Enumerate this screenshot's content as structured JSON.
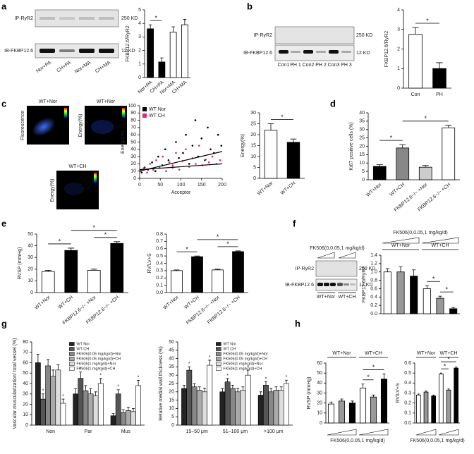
{
  "panels": {
    "letters": [
      "a",
      "b",
      "c",
      "d",
      "e",
      "f",
      "g",
      "h"
    ]
  },
  "blot_a": {
    "top": "IP-RyR2",
    "top_size": "250 KD",
    "bottom": "IB-FKBP12.6",
    "bottom_size": "12 KD",
    "lanes": [
      "Nor+PA",
      "CH+PA",
      "Nor+MA",
      "CH+MA"
    ]
  },
  "blot_b": {
    "top": "IP-RyR2",
    "top_size": "250 KD",
    "bottom": "IB-FKBP12.6",
    "bottom_size": "12 KD",
    "lanes": [
      "Con1",
      "PH 1",
      "Con2",
      "PH 2",
      "Con3",
      "PH 3"
    ]
  },
  "images_c": {
    "titles": [
      "WT+Nor",
      "WT+Nor",
      "WT+CH"
    ],
    "side_labels": [
      "Fluorescence",
      "Energy(%)",
      "Energy(%)"
    ]
  },
  "blot_f": {
    "header": "FK506(0,0.05,1 mg/kg/d)",
    "top": "IP-RyR2",
    "top_size": "250 KD",
    "bottom": "IB-FKBP12.6",
    "bottom_size": "12 KD",
    "groups": [
      "WT+Nor",
      "WT+CH"
    ]
  },
  "chart_data": [
    {
      "type": "bar",
      "ylabel": "FKBP12.6/RyR2",
      "categories": [
        "Nor+PA",
        "CH+PA",
        "Nor+MA",
        "CH+MA"
      ],
      "values": [
        3.6,
        1.15,
        3.35,
        3.9
      ],
      "errors": [
        0.3,
        0.3,
        0.4,
        0.4
      ],
      "colors": [
        "#000000",
        "#000000",
        "#ffffff",
        "#ffffff"
      ],
      "ylim": [
        0,
        5
      ],
      "yticks": [
        0,
        1,
        2,
        3,
        4,
        5
      ],
      "rotate_labels": true,
      "significance": [
        {
          "from": 0,
          "to": 1,
          "label": "*"
        }
      ]
    },
    {
      "type": "bar",
      "ylabel": "FKBP12.6/RyR2",
      "categories": [
        "Con",
        "PH"
      ],
      "values": [
        2.75,
        1.0
      ],
      "errors": [
        0.35,
        0.3
      ],
      "colors": [
        "#ffffff",
        "#000000"
      ],
      "ylim": [
        0,
        4
      ],
      "yticks": [
        0,
        1,
        2,
        3,
        4
      ],
      "rotate_labels": false,
      "significance": [
        {
          "from": 0,
          "to": 1,
          "label": "*"
        }
      ]
    },
    {
      "type": "scatter",
      "xlabel": "Acceptor",
      "ylabel": "Energy(%)",
      "xlim": [
        0,
        200
      ],
      "ylim": [
        0,
        100
      ],
      "xticks": [
        0,
        50,
        100,
        150,
        200
      ],
      "yticks": [
        0,
        10,
        20,
        30,
        40,
        50,
        60,
        70,
        80,
        90,
        100
      ],
      "trend_x": [
        0,
        200
      ],
      "series": [
        {
          "name": "WT Nor",
          "color": "#000000",
          "x": [
            5,
            12,
            20,
            30,
            38,
            45,
            55,
            62,
            70,
            80,
            88,
            95,
            105,
            112,
            120,
            128,
            135,
            142,
            150,
            158,
            165,
            172,
            180,
            190,
            198
          ],
          "y": [
            8,
            15,
            12,
            22,
            10,
            30,
            18,
            40,
            25,
            15,
            50,
            28,
            35,
            60,
            20,
            45,
            80,
            30,
            55,
            25,
            70,
            40,
            35,
            60,
            45
          ],
          "trend_y": [
            10,
            37
          ]
        },
        {
          "name": "WT CH",
          "color": "#e0218a",
          "x": [
            3,
            10,
            18,
            25,
            33,
            40,
            48,
            56,
            64,
            72,
            80,
            88,
            96,
            104,
            112,
            120,
            128,
            136,
            144,
            152,
            160,
            168,
            176,
            186,
            195
          ],
          "y": [
            10,
            14,
            8,
            20,
            12,
            25,
            15,
            30,
            10,
            22,
            18,
            35,
            12,
            24,
            40,
            16,
            28,
            20,
            45,
            18,
            26,
            22,
            30,
            20,
            25
          ],
          "trend_y": [
            12,
            20
          ]
        }
      ]
    },
    {
      "type": "bar",
      "ylabel": "Energy(%)",
      "categories": [
        "WT+Nor",
        "WT+CH"
      ],
      "values": [
        22,
        16.5
      ],
      "errors": [
        3,
        1.5
      ],
      "colors": [
        "#ffffff",
        "#000000"
      ],
      "ylim": [
        0,
        30
      ],
      "yticks": [
        0,
        5,
        10,
        15,
        20,
        25,
        30
      ],
      "rotate_labels": true,
      "significance": [
        {
          "from": 0,
          "to": 1,
          "label": "*"
        }
      ]
    },
    {
      "type": "bar",
      "ylabel": "Ki67 positive cells (%)",
      "categories": [
        "WT+Nor",
        "WT+CH",
        "FKBP12.6−/− +Nor",
        "FKBP12.6−/− +CH"
      ],
      "values": [
        8,
        19,
        7.5,
        31
      ],
      "errors": [
        1,
        2,
        1,
        1.5
      ],
      "colors": [
        "#000000",
        "#888888",
        "#cccccc",
        "#ffffff"
      ],
      "ylim": [
        0,
        40
      ],
      "yticks": [
        0,
        5,
        10,
        15,
        20,
        25,
        30,
        35,
        40
      ],
      "rotate_labels": true,
      "significance": [
        {
          "from": 0,
          "to": 1,
          "label": "*"
        },
        {
          "from": 1,
          "to": 3,
          "label": "*"
        }
      ]
    },
    {
      "type": "bar",
      "ylabel": "RVSP (mmHg)",
      "categories": [
        "WT+Nor",
        "WT+CH",
        "FKBP12.6−/− +Nor",
        "FKBP12.6−/− +CH"
      ],
      "values": [
        18,
        36,
        19,
        42
      ],
      "errors": [
        1,
        2,
        1,
        1.5
      ],
      "colors": [
        "#ffffff",
        "#000000",
        "#ffffff",
        "#000000"
      ],
      "ylim": [
        0,
        50
      ],
      "yticks": [
        0,
        10,
        20,
        30,
        40,
        50
      ],
      "rotate_labels": true,
      "significance": [
        {
          "from": 0,
          "to": 1,
          "label": "*"
        },
        {
          "from": 2,
          "to": 3,
          "label": "*"
        },
        {
          "from": 1,
          "to": 3,
          "label": "*"
        }
      ]
    },
    {
      "type": "bar",
      "ylabel": "RV/LV+S",
      "categories": [
        "WT+Nor",
        "WT+CH",
        "FKBP12.6−/− +Nor",
        "FKBP12.6−/− +CH"
      ],
      "values": [
        0.3,
        0.49,
        0.31,
        0.56
      ],
      "errors": [
        0.01,
        0.01,
        0.01,
        0.01
      ],
      "colors": [
        "#ffffff",
        "#000000",
        "#ffffff",
        "#000000"
      ],
      "ylim": [
        0,
        0.8
      ],
      "yticks": [
        {
          "value": 0,
          "label": "0.0"
        },
        0.1,
        0.2,
        0.3,
        0.4,
        0.5,
        0.6,
        0.7,
        0.8
      ],
      "rotate_labels": true,
      "significance": [
        {
          "from": 0,
          "to": 1,
          "label": "*"
        },
        {
          "from": 2,
          "to": 3,
          "label": "*"
        },
        {
          "from": 1,
          "to": 3,
          "label": "*"
        }
      ]
    },
    {
      "type": "bar",
      "ylabel": "FKBP12.6/RyR2",
      "values": [
        1.0,
        1.0,
        0.9,
        0.6,
        0.37,
        0.12
      ],
      "errors": [
        0.08,
        0.12,
        0.15,
        0.07,
        0.05,
        0.03
      ],
      "colors": [
        "#ffffff",
        "#999999",
        "#000000",
        "#ffffff",
        "#999999",
        "#000000"
      ],
      "ylim": [
        0,
        1.4
      ],
      "yticks": [
        {
          "value": 0,
          "label": "0.0"
        },
        0.2,
        0.4,
        0.6,
        0.8,
        {
          "value": 1,
          "label": "1.0"
        },
        1.2,
        1.4
      ],
      "significance": [
        {
          "from": 3,
          "to": 4,
          "label": "*"
        },
        {
          "from": 4,
          "to": 5,
          "label": "*"
        }
      ],
      "groups": [
        {
          "label": "WT+Nor",
          "bars": [
            0,
            2
          ]
        },
        {
          "label": "WT+CH",
          "bars": [
            3,
            5
          ]
        }
      ],
      "header": "FK506(0,0.05,1 mg/kg/d)",
      "header_position": "top"
    },
    {
      "type": "grouped_bar",
      "ylabel": "Vascular muscularization/ total vessel (%)",
      "categories": [
        "Non",
        "Par",
        "Mus"
      ],
      "ylim": [
        0,
        80
      ],
      "yticks": [
        0,
        10,
        20,
        30,
        40,
        50,
        60,
        70,
        80
      ],
      "series": [
        {
          "name": "WT Nor",
          "color": "#222222",
          "values": [
            60,
            30,
            9
          ],
          "errors": [
            8,
            5,
            2
          ]
        },
        {
          "name": "WT CH",
          "color": "#555555",
          "values": [
            25,
            45,
            30
          ],
          "errors": [
            5,
            6,
            4
          ]
        },
        {
          "name": "FK506(0.05 mg/kg/d)+Nor",
          "color": "#888888",
          "values": [
            57,
            33,
            12
          ],
          "errors": [
            6,
            5,
            3
          ]
        },
        {
          "name": "FK506(0.05 mg/kg/d)+CH",
          "color": "#aaaaaa",
          "values": [
            47,
            30,
            14
          ],
          "errors": [
            6,
            5,
            3
          ]
        },
        {
          "name": "FK506(1 mg/kg/d)+Nor",
          "color": "#dddddd",
          "values": [
            53,
            28,
            13
          ],
          "errors": [
            5,
            4,
            3
          ]
        },
        {
          "name": "FK506(1 mg/kg/d)+CH",
          "color": "#ffffff",
          "values": [
            21,
            40,
            38
          ],
          "errors": [
            4,
            5,
            5
          ]
        }
      ],
      "annotations": [
        {
          "label": "*",
          "category": 0,
          "series": 1
        },
        {
          "label": "*",
          "category": 0,
          "series": 5
        },
        {
          "label": "*",
          "category": 1,
          "series": 1
        },
        {
          "label": "*",
          "category": 1,
          "series": 5
        },
        {
          "label": "*",
          "category": 2,
          "series": 1
        },
        {
          "label": "*",
          "category": 2,
          "series": 5
        }
      ]
    },
    {
      "type": "grouped_bar",
      "ylabel": "Relative medial wall thickness (%)",
      "categories": [
        "15–50 μm",
        "51–100 μm",
        ">100 μm"
      ],
      "ylim": [
        0,
        50
      ],
      "yticks": [
        0,
        5,
        10,
        15,
        20,
        25,
        30,
        35,
        40,
        45,
        50
      ],
      "series": [
        {
          "name": "WT Nor",
          "color": "#222222",
          "values": [
            22,
            20,
            18
          ],
          "errors": [
            2,
            2,
            2
          ]
        },
        {
          "name": "WT CH",
          "color": "#555555",
          "values": [
            33,
            26,
            24
          ],
          "errors": [
            2,
            2,
            2
          ]
        },
        {
          "name": "FK506(0.05 mg/kg/d)+Nor",
          "color": "#888888",
          "values": [
            23,
            22,
            20
          ],
          "errors": [
            2,
            2,
            2
          ]
        },
        {
          "name": "FK506(0.05 mg/kg/d)+CH",
          "color": "#aaaaaa",
          "values": [
            21,
            20,
            21
          ],
          "errors": [
            2,
            2,
            2
          ]
        },
        {
          "name": "FK506(1 mg/kg/d)+Nor",
          "color": "#dddddd",
          "values": [
            20,
            21,
            21
          ],
          "errors": [
            2,
            2,
            2
          ]
        },
        {
          "name": "FK506(1 mg/kg/d)+CH",
          "color": "#ffffff",
          "values": [
            36,
            30,
            25
          ],
          "errors": [
            3,
            3,
            2
          ]
        }
      ],
      "annotations": [
        {
          "label": "*",
          "category": 0,
          "series": 1
        },
        {
          "label": "*",
          "category": 0,
          "series": 5
        },
        {
          "label": "*",
          "category": 1,
          "series": 1
        },
        {
          "label": "*",
          "category": 1,
          "series": 5
        },
        {
          "label": "*",
          "category": 2,
          "series": 1
        },
        {
          "label": "*",
          "category": 2,
          "series": 5
        }
      ]
    },
    {
      "type": "bar",
      "ylabel": "RVSP (mmHg)",
      "values": [
        19,
        22,
        20,
        35,
        26,
        44
      ],
      "errors": [
        2,
        2,
        2,
        4,
        2,
        5
      ],
      "colors": [
        "#ffffff",
        "#999999",
        "#000000",
        "#ffffff",
        "#999999",
        "#000000"
      ],
      "ylim": [
        0,
        60
      ],
      "yticks": [
        0,
        10,
        20,
        30,
        40,
        50,
        60
      ],
      "significance": [
        {
          "from": 3,
          "to": 4,
          "label": "*"
        },
        {
          "from": 3,
          "to": 5,
          "label": "*"
        }
      ],
      "groups": [
        {
          "label": "WT+Nor",
          "bars": [
            0,
            2
          ]
        },
        {
          "label": "WT+CH",
          "bars": [
            3,
            5
          ]
        }
      ],
      "header": "FK506(0,0.05,1 mg/kg/d)",
      "header_position": "bottom"
    },
    {
      "type": "bar",
      "ylabel": "RV/LV+S",
      "values": [
        0.28,
        0.31,
        0.27,
        0.49,
        0.33,
        0.55
      ],
      "errors": [
        0.01,
        0.01,
        0.01,
        0.01,
        0.01,
        0.01
      ],
      "colors": [
        "#ffffff",
        "#999999",
        "#000000",
        "#ffffff",
        "#999999",
        "#000000"
      ],
      "ylim": [
        0,
        0.6
      ],
      "yticks": [
        {
          "value": 0,
          "label": "0.0"
        },
        0.1,
        0.2,
        0.3,
        0.4,
        0.5,
        0.6
      ],
      "significance": [
        {
          "from": 3,
          "to": 4,
          "label": "*"
        },
        {
          "from": 3,
          "to": 5,
          "label": "*"
        }
      ],
      "groups": [
        {
          "label": "WT+Nor",
          "bars": [
            0,
            2
          ]
        },
        {
          "label": "WT+CH",
          "bars": [
            3,
            5
          ]
        }
      ],
      "header": "FK506(0,0.05,1 mg/kg/d)",
      "header_position": "bottom"
    }
  ]
}
